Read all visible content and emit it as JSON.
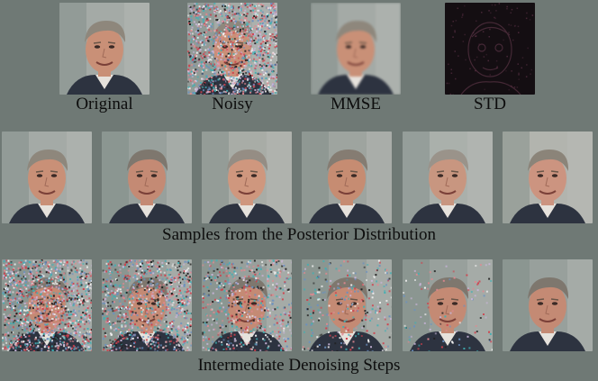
{
  "figure": {
    "top_row": [
      {
        "caption": "Original",
        "kind": "clean"
      },
      {
        "caption": "Noisy",
        "kind": "noisy"
      },
      {
        "caption": "MMSE",
        "kind": "mmse"
      },
      {
        "caption": "STD",
        "kind": "std"
      }
    ],
    "samples_caption": "Samples from the Posterior Distribution",
    "steps_caption": "Intermediate Denoising Steps",
    "samples_count": 6,
    "steps_noise_levels": [
      0.95,
      0.75,
      0.45,
      0.2,
      0.08,
      0.0
    ]
  }
}
